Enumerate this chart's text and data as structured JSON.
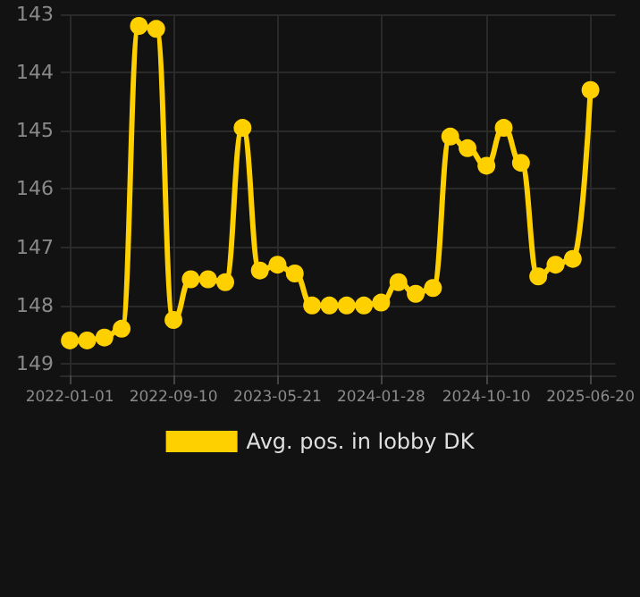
{
  "chart_data": {
    "type": "line",
    "x": [
      "2022-01-01",
      "2022-02-12",
      "2022-03-26",
      "2022-05-07",
      "2022-06-18",
      "2022-07-30",
      "2022-09-10",
      "2022-10-22",
      "2022-12-03",
      "2023-01-14",
      "2023-02-25",
      "2023-04-08",
      "2023-05-21",
      "2023-07-02",
      "2023-08-13",
      "2023-09-24",
      "2023-11-05",
      "2023-12-17",
      "2024-01-28",
      "2024-03-10",
      "2024-04-21",
      "2024-06-02",
      "2024-07-14",
      "2024-08-25",
      "2024-10-10",
      "2024-11-21",
      "2025-01-02",
      "2025-02-13",
      "2025-03-27",
      "2025-05-08",
      "2025-06-20"
    ],
    "series": [
      {
        "name": "Avg. pos. in lobby DK",
        "color": "#ffd000",
        "values": [
          148.6,
          148.6,
          148.55,
          148.4,
          143.2,
          143.25,
          148.25,
          147.55,
          147.55,
          147.6,
          144.95,
          147.4,
          147.3,
          147.45,
          148.0,
          148.0,
          148.0,
          148.0,
          147.95,
          147.6,
          147.8,
          147.7,
          145.1,
          145.3,
          145.6,
          144.95,
          145.55,
          147.5,
          147.3,
          147.2,
          144.3
        ]
      }
    ],
    "ylim": [
      149.2,
      143
    ],
    "yticks": [
      143,
      144,
      145,
      146,
      147,
      148,
      149
    ],
    "xlim": [
      "2021-12-10",
      "2025-08-20"
    ],
    "xticks": [
      "2022-01-01",
      "2022-09-10",
      "2023-05-21",
      "2024-01-28",
      "2024-10-10",
      "2025-06-20"
    ],
    "grid": true,
    "legend": "bottom",
    "marker": "circle",
    "line_style": "solid"
  }
}
